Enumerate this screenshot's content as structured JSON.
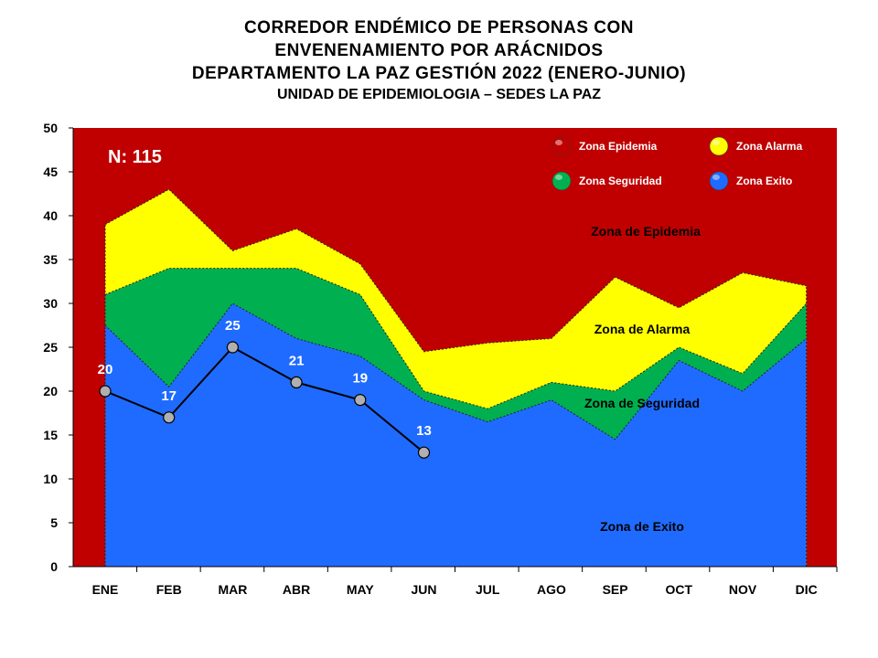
{
  "title": {
    "line1": "CORREDOR ENDÉMICO DE PERSONAS CON",
    "line2": "ENVENENAMIENTO POR ARÁCNIDOS",
    "line3": "DEPARTAMENTO  LA PAZ GESTIÓN 2022 (ENERO-JUNIO)",
    "line4": "UNIDAD DE EPIDEMIOLOGIA – SEDES LA PAZ"
  },
  "n_label": "N: 115",
  "legend": [
    {
      "label": "Zona Epidemia",
      "color": "#c00000"
    },
    {
      "label": "Zona Alarma",
      "color": "#ffff00"
    },
    {
      "label": "Zona Seguridad",
      "color": "#00b050"
    },
    {
      "label": "Zona Exito",
      "color": "#1f6bff"
    }
  ],
  "zone_labels": {
    "epidemia": "Zona de Epidemia",
    "alarma": "Zona de Alarma",
    "seguridad": "Zona de Seguridad",
    "exito": "Zona de Exito"
  },
  "colors": {
    "epidemia": "#c00000",
    "alarma": "#ffff00",
    "seguridad": "#00b050",
    "exito": "#1f6bff",
    "line": "#000000",
    "marker": "#b0b0b0"
  },
  "chart_data": {
    "type": "area",
    "categories": [
      "ENE",
      "FEB",
      "MAR",
      "ABR",
      "MAY",
      "JUN",
      "JUL",
      "AGO",
      "SEP",
      "OCT",
      "NOV",
      "DIC"
    ],
    "ylim": [
      0,
      50
    ],
    "yticks": [
      0,
      5,
      10,
      15,
      20,
      25,
      30,
      35,
      40,
      45,
      50
    ],
    "epidemia_top": 50,
    "alarma_upper": [
      39,
      43,
      36,
      38.5,
      34.5,
      24.5,
      25.5,
      26,
      33,
      29.5,
      33.5,
      32
    ],
    "seguridad_upper": [
      31,
      34,
      34,
      34,
      31,
      20,
      18,
      21,
      20,
      25,
      22,
      30
    ],
    "exito_upper": [
      27.5,
      20.5,
      30,
      26,
      24,
      19,
      16.5,
      19,
      14.5,
      23.5,
      20,
      26
    ],
    "observed": {
      "categories": [
        "ENE",
        "FEB",
        "MAR",
        "ABR",
        "MAY",
        "JUN"
      ],
      "values": [
        20,
        17,
        25,
        21,
        19,
        13
      ]
    }
  }
}
